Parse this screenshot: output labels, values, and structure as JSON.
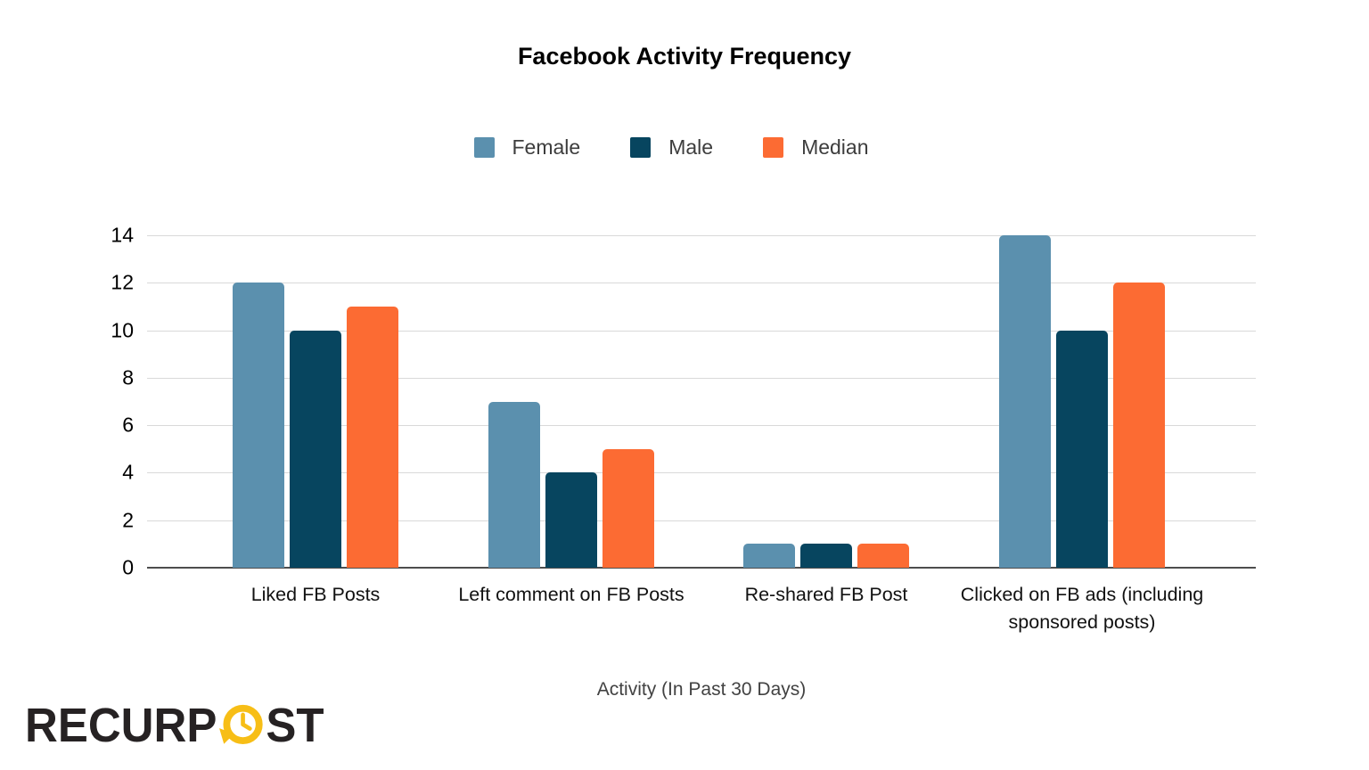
{
  "chart_data": {
    "type": "bar",
    "title": "Facebook Activity Frequency",
    "xlabel": "Activity (In Past 30 Days)",
    "ylabel": "",
    "categories": [
      "Liked FB Posts",
      "Left comment on FB Posts",
      "Re-shared FB Post",
      "Clicked on FB ads (including sponsored posts)"
    ],
    "series": [
      {
        "name": "Female",
        "color": "#5B90AE",
        "values": [
          12,
          7,
          1,
          14
        ]
      },
      {
        "name": "Male",
        "color": "#07455F",
        "values": [
          10,
          4,
          1,
          10
        ]
      },
      {
        "name": "Median",
        "color": "#FC6B33",
        "values": [
          11,
          5,
          1,
          12
        ]
      }
    ],
    "ylim": [
      0,
      14
    ],
    "ytick_step": 2,
    "grid": true,
    "legend_position": "top"
  },
  "branding": {
    "logo_text_1": "RECURP",
    "logo_text_2": "ST",
    "logo_color": "#262223",
    "clock_color": "#F7BE16"
  }
}
